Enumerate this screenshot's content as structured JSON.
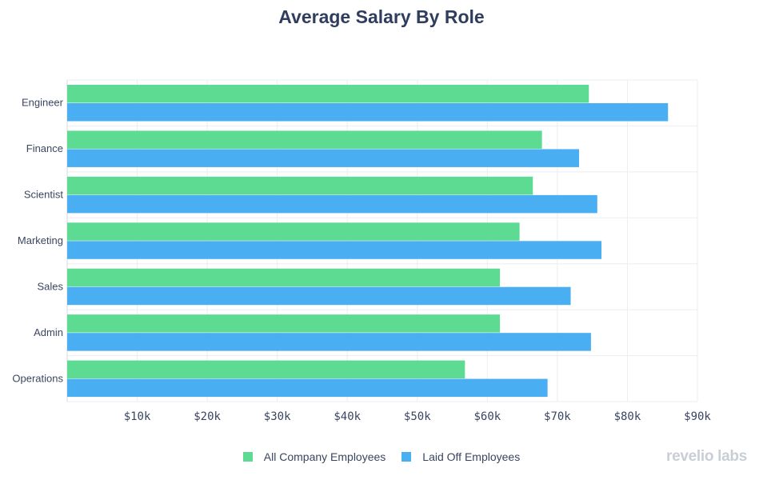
{
  "chart_data": {
    "type": "bar",
    "orientation": "horizontal",
    "title": "Average Salary By Role",
    "categories": [
      "Engineer",
      "Finance",
      "Scientist",
      "Marketing",
      "Sales",
      "Admin",
      "Operations"
    ],
    "series": [
      {
        "name": "All Company Employees",
        "color": "#5edb93",
        "values": [
          74500,
          67800,
          66500,
          64600,
          61800,
          61800,
          56800
        ]
      },
      {
        "name": "Laid Off Employees",
        "color": "#4aaff2",
        "values": [
          85800,
          73100,
          75700,
          76300,
          71900,
          74800,
          68600
        ]
      }
    ],
    "x_ticks": [
      10000,
      20000,
      30000,
      40000,
      50000,
      60000,
      70000,
      80000,
      90000
    ],
    "x_tick_labels": [
      "$10k",
      "$20k",
      "$30k",
      "$40k",
      "$50k",
      "$60k",
      "$70k",
      "$80k",
      "$90k"
    ],
    "xlim": [
      0,
      90000
    ],
    "grid": true,
    "legend_position": "bottom-center"
  },
  "watermark": "revelio labs"
}
